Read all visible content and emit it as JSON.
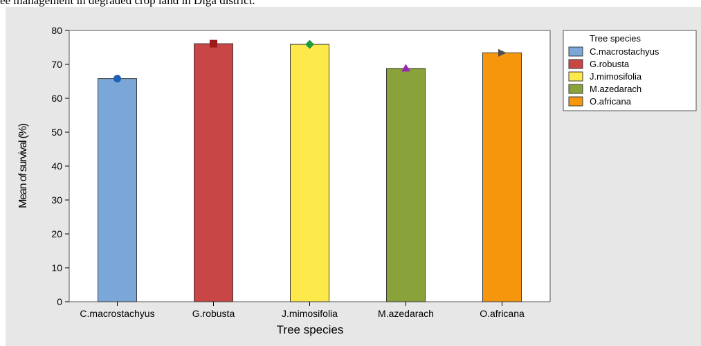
{
  "caption": "ee management in degraded crop land in Diga district.",
  "chart_data": {
    "type": "bar",
    "title": "",
    "xlabel": "Tree species",
    "ylabel": "Mean of survival (%)",
    "ylim": [
      0,
      80
    ],
    "yticks": [
      0,
      10,
      20,
      30,
      40,
      50,
      60,
      70,
      80
    ],
    "categories": [
      "C.macrostachyus",
      "G.robusta",
      "J.mimosifolia",
      "M.azedarach",
      "O.africana"
    ],
    "values": [
      65.8,
      76.1,
      75.9,
      68.8,
      73.4
    ],
    "colors": [
      "#7aa6d8",
      "#c84646",
      "#fde94a",
      "#8aa23a",
      "#f5960c"
    ],
    "markers": [
      {
        "shape": "circle",
        "color": "#1f5fb5"
      },
      {
        "shape": "square",
        "color": "#9b1b1b"
      },
      {
        "shape": "diamond",
        "color": "#1f9a3a"
      },
      {
        "shape": "triangle-up",
        "color": "#9b27b0"
      },
      {
        "shape": "triangle-right",
        "color": "#505050"
      }
    ],
    "legend": {
      "title": "Tree species",
      "position": "top-right",
      "entries": [
        "C.macrostachyus",
        "G.robusta",
        "J.mimosifolia",
        "M.azedarach",
        "O.africana"
      ]
    },
    "grid": false
  }
}
